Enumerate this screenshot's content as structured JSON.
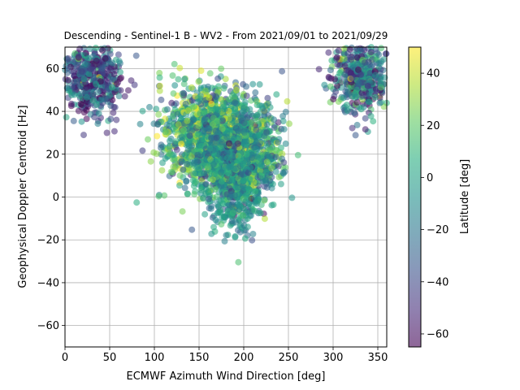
{
  "chart_data": {
    "type": "scatter",
    "title": "Descending - Sentinel-1 B - WV2 - From 2021/09/01 to 2021/09/29",
    "xlabel": "ECMWF Azimuth Wind Direction [deg]",
    "ylabel": "Geophysical Doppler Centroid [Hz]",
    "xlim": [
      0,
      360
    ],
    "ylim": [
      -70,
      70
    ],
    "x_ticks": [
      "0",
      "50",
      "100",
      "150",
      "200",
      "250",
      "300",
      "350"
    ],
    "y_ticks": [
      "−60",
      "−40",
      "−20",
      "0",
      "20",
      "40",
      "60"
    ],
    "grid": true,
    "marker_alpha": 0.55,
    "colorbar": {
      "label": "Latitude [deg]",
      "range": [
        -65,
        50
      ],
      "ticks": [
        "−60",
        "−40",
        "−20",
        "0",
        "20",
        "40"
      ],
      "colormap": "viridis"
    },
    "clusters": [
      {
        "x_center": 170,
        "y_center": 30,
        "x_spread": 60,
        "y_spread": 12,
        "lat_center": 5,
        "lat_spread": 25
      },
      {
        "x_center": 190,
        "y_center": 15,
        "x_spread": 45,
        "y_spread": 12,
        "lat_center": -5,
        "lat_spread": 20
      },
      {
        "x_center": 30,
        "y_center": 55,
        "x_spread": 35,
        "y_spread": 10,
        "lat_center": -35,
        "lat_spread": 25
      },
      {
        "x_center": 330,
        "y_center": 57,
        "x_spread": 35,
        "y_spread": 10,
        "lat_center": -25,
        "lat_spread": 30
      },
      {
        "x_center": 195,
        "y_center": -8,
        "x_spread": 25,
        "y_spread": 7,
        "lat_center": -8,
        "lat_spread": 12
      }
    ]
  }
}
